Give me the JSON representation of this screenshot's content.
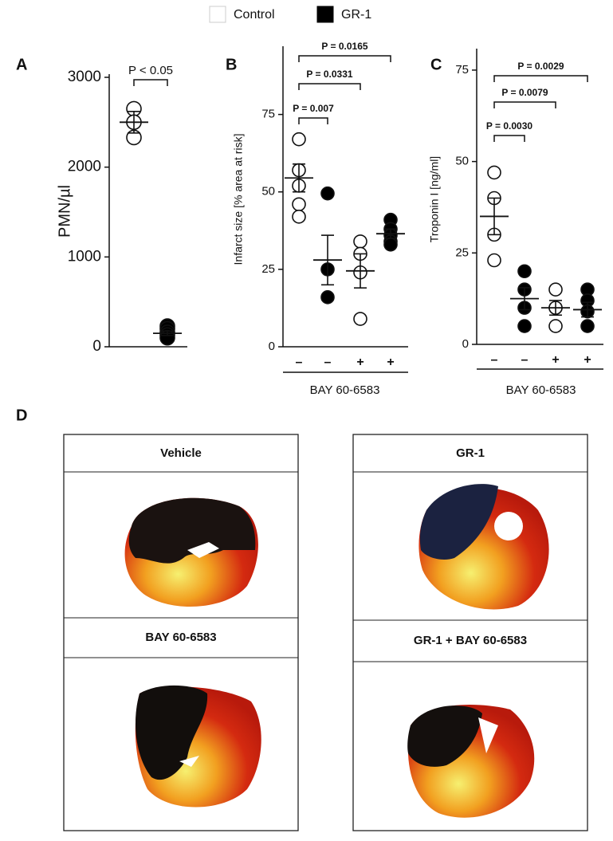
{
  "legend": [
    {
      "name": "Control",
      "color": "#ffffff"
    },
    {
      "name": "GR-1",
      "color": "#000000"
    }
  ],
  "chart_data": [
    {
      "type": "scatter",
      "panel": "A",
      "y_label": "PMN/µl",
      "ylim": [
        0,
        3000
      ],
      "yticks": [
        0,
        1000,
        2000,
        3000
      ],
      "groups": [
        {
          "series": "Control",
          "values": [
            2650,
            2500,
            2330
          ],
          "mean": 2500,
          "sem": 120
        },
        {
          "series": "GR-1",
          "values": [
            230,
            200,
            160,
            130,
            100
          ],
          "mean": 150,
          "sem": 25
        }
      ],
      "comparisons": [
        {
          "groups": [
            0,
            1
          ],
          "label": "P < 0.05"
        }
      ]
    },
    {
      "type": "scatter",
      "panel": "B",
      "y_label": "Infarct size  [% area at risk]",
      "x_label": "BAY 60-6583",
      "ylim": [
        0,
        96
      ],
      "yticks": [
        0,
        25,
        50,
        75
      ],
      "groups": [
        {
          "label": "–",
          "series": "Control",
          "values": [
            67,
            57,
            52,
            46,
            42
          ],
          "mean": 54.5,
          "sem": 4.5
        },
        {
          "label": "–",
          "series": "GR-1",
          "values": [
            49.5,
            25,
            16
          ],
          "mean": 28,
          "sem": 8
        },
        {
          "label": "+",
          "series": "Control",
          "values": [
            34,
            30,
            24,
            9
          ],
          "mean": 24.5,
          "sem": 5.5
        },
        {
          "label": "+",
          "series": "GR-1",
          "values": [
            41,
            38,
            36,
            34,
            33
          ],
          "mean": 36.5,
          "sem": 1.5
        }
      ],
      "comparisons": [
        {
          "groups": [
            0,
            1
          ],
          "label": "P = 0.007"
        },
        {
          "groups": [
            0,
            2
          ],
          "label": "P = 0.0331"
        },
        {
          "groups": [
            0,
            3
          ],
          "label": "P = 0.0165"
        }
      ]
    },
    {
      "type": "scatter",
      "panel": "C",
      "y_label": "Troponin I [ng/ml]",
      "x_label": "BAY 60-6583",
      "ylim": [
        0,
        80
      ],
      "yticks": [
        0,
        25,
        50,
        75
      ],
      "groups": [
        {
          "label": "–",
          "series": "Control",
          "values": [
            47,
            40,
            30,
            23
          ],
          "mean": 35,
          "sem": 5
        },
        {
          "label": "–",
          "series": "GR-1",
          "values": [
            20,
            15,
            10,
            5
          ],
          "mean": 12.5,
          "sem": 3
        },
        {
          "label": "+",
          "series": "Control",
          "values": [
            15,
            10,
            10,
            5
          ],
          "mean": 10,
          "sem": 2
        },
        {
          "label": "+",
          "series": "GR-1",
          "values": [
            15,
            12,
            9,
            5
          ],
          "mean": 9.5,
          "sem": 2
        }
      ],
      "comparisons": [
        {
          "groups": [
            0,
            1
          ],
          "label": "P = 0.0030"
        },
        {
          "groups": [
            0,
            2
          ],
          "label": "P = 0.0079"
        },
        {
          "groups": [
            0,
            3
          ],
          "label": "P = 0.0029"
        }
      ]
    }
  ],
  "panel_d": {
    "label": "D",
    "boxes": [
      "Vehicle",
      "BAY 60-6583",
      "GR-1",
      "GR-1 + BAY 60-6583"
    ]
  }
}
